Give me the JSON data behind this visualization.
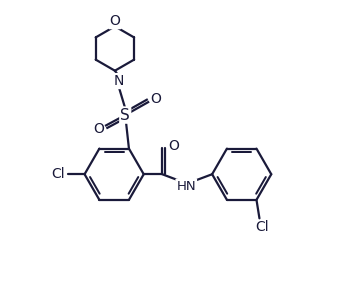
{
  "background_color": "#ffffff",
  "line_color": "#1a1a3a",
  "text_color": "#1a1a3a",
  "line_width": 1.6,
  "figsize": [
    3.54,
    2.93
  ],
  "dpi": 100,
  "xlim": [
    0,
    9.5
  ],
  "ylim": [
    0,
    7.8
  ]
}
